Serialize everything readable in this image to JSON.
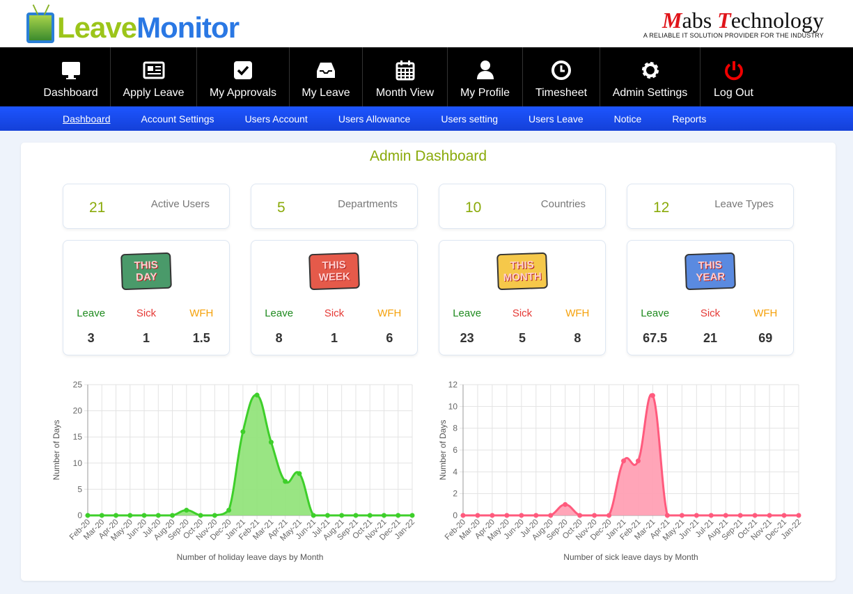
{
  "brand": {
    "logo_part1": "Leave",
    "logo_part2": "Monitor",
    "partner_name_1": "M",
    "partner_name_2": "abs ",
    "partner_name_3": "T",
    "partner_name_4": "echnology",
    "partner_tagline": "A RELIABLE IT SOLUTION PROVIDER FOR THE INDUSTRY"
  },
  "nav": [
    {
      "label": "Dashboard",
      "icon": "monitor-icon"
    },
    {
      "label": "Apply Leave",
      "icon": "newspaper-icon"
    },
    {
      "label": "My Approvals",
      "icon": "check-square-icon"
    },
    {
      "label": "My Leave",
      "icon": "inbox-icon"
    },
    {
      "label": "Month View",
      "icon": "calendar-icon"
    },
    {
      "label": "My Profile",
      "icon": "user-icon"
    },
    {
      "label": "Timesheet",
      "icon": "clock-icon"
    },
    {
      "label": "Admin Settings",
      "icon": "gear-icon"
    },
    {
      "label": "Log Out",
      "icon": "power-icon"
    }
  ],
  "subnav": [
    "Dashboard",
    "Account Settings",
    "Users Account",
    "Users Allowance",
    "Users setting",
    "Users Leave",
    "Notice",
    "Reports"
  ],
  "page_title": "Admin Dashboard",
  "stats": [
    {
      "value": "21",
      "label": "Active Users"
    },
    {
      "value": "5",
      "label": "Departments"
    },
    {
      "value": "10",
      "label": "Countries"
    },
    {
      "value": "12",
      "label": "Leave Types"
    }
  ],
  "period_cols": {
    "leave": "Leave",
    "sick": "Sick",
    "wfh": "WFH"
  },
  "periods": [
    {
      "badge_1": "THIS",
      "badge_2": "DAY",
      "color": "#4a9a6a",
      "leave": "3",
      "sick": "1",
      "wfh": "1.5"
    },
    {
      "badge_1": "THIS",
      "badge_2": "WEEK",
      "color": "#e55a4a",
      "leave": "8",
      "sick": "1",
      "wfh": "6"
    },
    {
      "badge_1": "THIS",
      "badge_2": "MONTH",
      "color": "#f5c84a",
      "leave": "23",
      "sick": "5",
      "wfh": "8"
    },
    {
      "badge_1": "THIS",
      "badge_2": "YEAR",
      "color": "#5a8ae0",
      "leave": "67.5",
      "sick": "21",
      "wfh": "69"
    }
  ],
  "chart_data": [
    {
      "type": "area",
      "xlabel": "Number of holiday leave days by Month",
      "ylabel": "Number of Days",
      "ylim": [
        0,
        25
      ],
      "yticks": [
        0,
        5,
        10,
        15,
        20,
        25
      ],
      "color": "#3ecf2a",
      "fill": "#93e47c",
      "grid": true,
      "categories": [
        "Feb-20",
        "Mar-20",
        "Apr-20",
        "May-20",
        "Jun-20",
        "Jul-20",
        "Aug-20",
        "Sep-20",
        "Oct-20",
        "Nov-20",
        "Dec-20",
        "Jan-21",
        "Feb-21",
        "Mar-21",
        "Apr-21",
        "May-21",
        "Jun-21",
        "Jul-21",
        "Aug-21",
        "Sep-21",
        "Oct-21",
        "Nov-21",
        "Dec-21",
        "Jan-22"
      ],
      "values": [
        0,
        0,
        0,
        0,
        0,
        0,
        0,
        1,
        0,
        0,
        1,
        16,
        23,
        14,
        6.5,
        8,
        0,
        0,
        0,
        0,
        0,
        0,
        0,
        0
      ]
    },
    {
      "type": "area",
      "xlabel": "Number of sick leave days by Month",
      "ylabel": "Number of Days",
      "ylim": [
        0,
        12
      ],
      "yticks": [
        0,
        2,
        4,
        6,
        8,
        10,
        12
      ],
      "color": "#ff5a7d",
      "fill": "#ffa0b4",
      "grid": true,
      "categories": [
        "Feb-20",
        "Mar-20",
        "Apr-20",
        "May-20",
        "Jun-20",
        "Jul-20",
        "Aug-20",
        "Sep-20",
        "Oct-20",
        "Nov-20",
        "Dec-20",
        "Jan-21",
        "Feb-21",
        "Mar-21",
        "Apr-21",
        "May-21",
        "Jun-21",
        "Jul-21",
        "Aug-21",
        "Sep-21",
        "Oct-21",
        "Nov-21",
        "Dec-21",
        "Jan-22"
      ],
      "values": [
        0,
        0,
        0,
        0,
        0,
        0,
        0,
        1,
        0,
        0,
        0,
        5,
        5,
        11,
        0,
        0,
        0,
        0,
        0,
        0,
        0,
        0,
        0,
        0
      ]
    }
  ]
}
